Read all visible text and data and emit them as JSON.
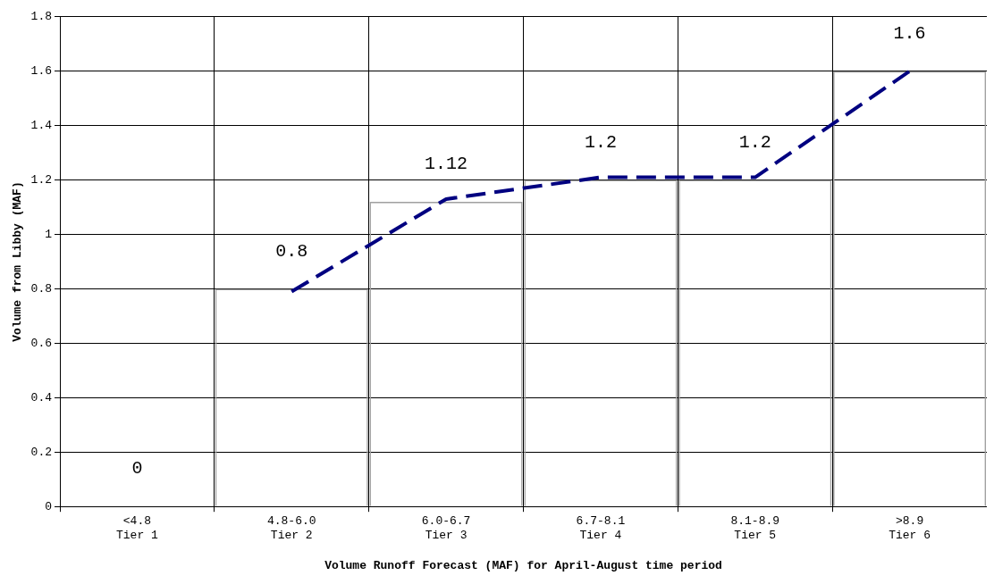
{
  "chart_data": {
    "type": "bar",
    "xlabel": "Volume Runoff Forecast (MAF) for April-August time period",
    "ylabel": "Volume from Libby (MAF)",
    "categories": [
      "<4.8\nTier 1",
      "4.8-6.0\nTier 2",
      "6.0-6.7\nTier 3",
      "6.7-8.1\nTier 4",
      "8.1-8.9\nTier 5",
      ">8.9\nTier 6"
    ],
    "series": [
      {
        "color": "#a0a0a0",
        "values": [
          0,
          0.8,
          1.12,
          1.2,
          1.2,
          1.6
        ],
        "data_labels": true
      },
      {
        "type": "line",
        "color": "#000080",
        "line_style": "dashed",
        "marker": "none",
        "values": [
          null,
          0.79,
          1.13,
          1.21,
          1.21,
          1.6
        ]
      }
    ],
    "ylim": [
      0,
      1.8
    ],
    "yticks": [
      0,
      0.2,
      0.4,
      0.6,
      0.8,
      1,
      1.2,
      1.4,
      1.6,
      1.8
    ],
    "grid": true,
    "legend": false
  }
}
